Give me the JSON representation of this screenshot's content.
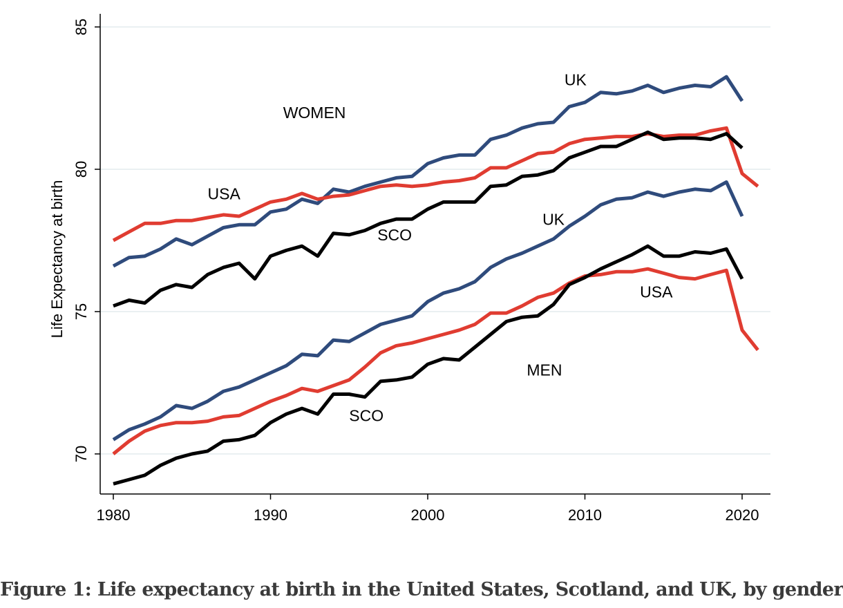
{
  "caption": "Figure 1: Life expectancy at birth in the United States, Scotland, and UK, by gender",
  "chart_data": {
    "type": "line",
    "title": "",
    "xlabel": "",
    "ylabel": "Life Expectancy at birth",
    "xlim": [
      1980,
      2021
    ],
    "ylim": [
      68.9,
      85.2
    ],
    "xticks": [
      1980,
      1990,
      2000,
      2010,
      2020
    ],
    "yticks": [
      70,
      75,
      80,
      85
    ],
    "grid": true,
    "x": [
      1980,
      1981,
      1982,
      1983,
      1984,
      1985,
      1986,
      1987,
      1988,
      1989,
      1990,
      1991,
      1992,
      1993,
      1994,
      1995,
      1996,
      1997,
      1998,
      1999,
      2000,
      2001,
      2002,
      2003,
      2004,
      2005,
      2006,
      2007,
      2008,
      2009,
      2010,
      2011,
      2012,
      2013,
      2014,
      2015,
      2016,
      2017,
      2018,
      2019,
      2020,
      2021
    ],
    "series": [
      {
        "group": "WOMEN",
        "country": "UK",
        "color": "#2f4b7c",
        "values": [
          76.6,
          76.9,
          76.95,
          77.2,
          77.55,
          77.35,
          77.65,
          77.95,
          78.05,
          78.05,
          78.5,
          78.6,
          78.95,
          78.8,
          79.3,
          79.2,
          79.4,
          79.55,
          79.7,
          79.75,
          80.2,
          80.4,
          80.5,
          80.5,
          81.05,
          81.2,
          81.45,
          81.6,
          81.65,
          82.2,
          82.35,
          82.7,
          82.65,
          82.75,
          82.95,
          82.7,
          82.85,
          82.95,
          82.9,
          83.25,
          82.4,
          null
        ]
      },
      {
        "group": "WOMEN",
        "country": "USA",
        "color": "#e03c31",
        "values": [
          77.5,
          77.8,
          78.1,
          78.1,
          78.2,
          78.2,
          78.3,
          78.4,
          78.35,
          78.6,
          78.85,
          78.95,
          79.15,
          78.95,
          79.05,
          79.1,
          79.25,
          79.4,
          79.45,
          79.4,
          79.45,
          79.55,
          79.6,
          79.7,
          80.05,
          80.05,
          80.3,
          80.55,
          80.6,
          80.9,
          81.05,
          81.1,
          81.15,
          81.15,
          81.25,
          81.15,
          81.2,
          81.2,
          81.35,
          81.45,
          79.85,
          79.4
        ]
      },
      {
        "group": "WOMEN",
        "country": "SCO",
        "color": "#000000",
        "values": [
          75.2,
          75.4,
          75.3,
          75.75,
          75.95,
          75.85,
          76.3,
          76.55,
          76.7,
          76.15,
          76.95,
          77.15,
          77.3,
          76.95,
          77.75,
          77.7,
          77.85,
          78.1,
          78.25,
          78.25,
          78.6,
          78.85,
          78.85,
          78.85,
          79.4,
          79.45,
          79.75,
          79.8,
          79.95,
          80.4,
          80.6,
          80.8,
          80.8,
          81.05,
          81.3,
          81.05,
          81.1,
          81.1,
          81.05,
          81.25,
          80.75,
          null
        ]
      },
      {
        "group": "MEN",
        "country": "UK",
        "color": "#2f4b7c",
        "values": [
          70.5,
          70.85,
          71.05,
          71.3,
          71.7,
          71.6,
          71.85,
          72.2,
          72.35,
          72.6,
          72.85,
          73.1,
          73.5,
          73.45,
          74.0,
          73.95,
          74.25,
          74.55,
          74.7,
          74.85,
          75.35,
          75.65,
          75.8,
          76.05,
          76.55,
          76.85,
          77.05,
          77.3,
          77.55,
          78.0,
          78.35,
          78.75,
          78.95,
          79.0,
          79.2,
          79.05,
          79.2,
          79.3,
          79.25,
          79.55,
          78.35,
          null
        ]
      },
      {
        "group": "MEN",
        "country": "USA",
        "color": "#e03c31",
        "values": [
          70.0,
          70.45,
          70.8,
          71.0,
          71.1,
          71.1,
          71.15,
          71.3,
          71.35,
          71.6,
          71.85,
          72.05,
          72.3,
          72.2,
          72.4,
          72.6,
          73.05,
          73.55,
          73.8,
          73.9,
          74.05,
          74.2,
          74.35,
          74.55,
          74.95,
          74.95,
          75.2,
          75.5,
          75.65,
          76.0,
          76.25,
          76.3,
          76.4,
          76.4,
          76.5,
          76.35,
          76.2,
          76.15,
          76.3,
          76.45,
          74.35,
          73.65
        ]
      },
      {
        "group": "MEN",
        "country": "SCO",
        "color": "#000000",
        "values": [
          68.95,
          69.1,
          69.25,
          69.6,
          69.85,
          70.0,
          70.1,
          70.45,
          70.5,
          70.65,
          71.1,
          71.4,
          71.6,
          71.4,
          72.1,
          72.1,
          72.0,
          72.55,
          72.6,
          72.7,
          73.15,
          73.35,
          73.3,
          73.75,
          74.2,
          74.65,
          74.8,
          74.85,
          75.25,
          75.95,
          76.2,
          76.5,
          76.75,
          77.0,
          77.3,
          76.95,
          76.95,
          77.1,
          77.05,
          77.2,
          76.15,
          null
        ]
      }
    ],
    "annotations": [
      {
        "text": "WOMEN",
        "x": 1990.8,
        "y": 81.8
      },
      {
        "text": "MEN",
        "x": 2006.3,
        "y": 72.75
      },
      {
        "text": "UK",
        "x": 2008.7,
        "y": 82.95
      },
      {
        "text": "USA",
        "x": 1986.0,
        "y": 78.95
      },
      {
        "text": "SCO",
        "x": 1996.8,
        "y": 77.5
      },
      {
        "text": "UK",
        "x": 2007.3,
        "y": 78.05
      },
      {
        "text": "USA",
        "x": 2013.5,
        "y": 75.5
      },
      {
        "text": "SCO",
        "x": 1995.0,
        "y": 71.15
      }
    ]
  }
}
